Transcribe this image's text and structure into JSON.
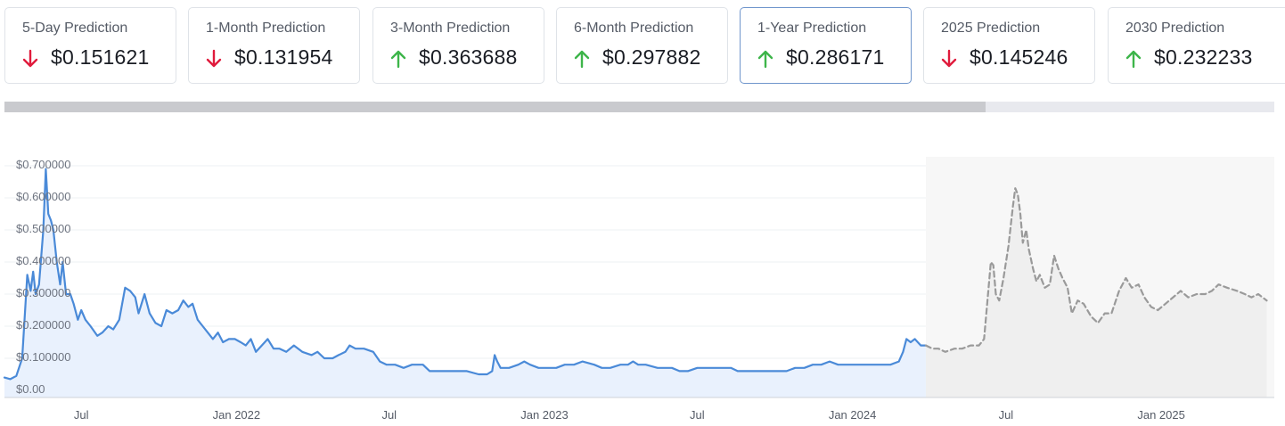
{
  "cards": [
    {
      "label": "5-Day Prediction",
      "value": "$0.151621",
      "direction": "down"
    },
    {
      "label": "1-Month Prediction",
      "value": "$0.131954",
      "direction": "down"
    },
    {
      "label": "3-Month Prediction",
      "value": "$0.363688",
      "direction": "up"
    },
    {
      "label": "6-Month Prediction",
      "value": "$0.297882",
      "direction": "up"
    },
    {
      "label": "1-Year Prediction",
      "value": "$0.286171",
      "direction": "up",
      "selected": true
    },
    {
      "label": "2025 Prediction",
      "value": "$0.145246",
      "direction": "down"
    },
    {
      "label": "2030 Prediction",
      "value": "$0.232233",
      "direction": "up"
    }
  ],
  "colors": {
    "down": "#e01b3c",
    "up": "#3db54a",
    "history_line": "#4a8ad8",
    "history_fill": "#e9f1fd",
    "forecast_line": "#9a9a9a",
    "forecast_fill": "#efefef"
  },
  "chart_data": {
    "type": "line",
    "x_type": "date",
    "grid": true,
    "ylim": [
      0,
      0.7
    ],
    "xlim": [
      "2021-04-01",
      "2025-05-15"
    ],
    "y_ticks": [
      "$0.00",
      "$0.100000",
      "$0.200000",
      "$0.300000",
      "$0.400000",
      "$0.500000",
      "$0.600000",
      "$0.700000"
    ],
    "y_tick_values": [
      0,
      0.1,
      0.2,
      0.3,
      0.4,
      0.5,
      0.6,
      0.7
    ],
    "x_ticks": [
      {
        "label": "Jul",
        "date": "2021-07-01"
      },
      {
        "label": "Jan 2022",
        "date": "2022-01-01"
      },
      {
        "label": "Jul",
        "date": "2022-07-01"
      },
      {
        "label": "Jan 2023",
        "date": "2023-01-01"
      },
      {
        "label": "Jul",
        "date": "2023-07-01"
      },
      {
        "label": "Jan 2024",
        "date": "2024-01-01"
      },
      {
        "label": "Jul",
        "date": "2024-07-01"
      },
      {
        "label": "Jan 2025",
        "date": "2025-01-01"
      }
    ],
    "series": [
      {
        "style": "solid",
        "points": [
          [
            "2021-04-01",
            0.04
          ],
          [
            "2021-04-08",
            0.035
          ],
          [
            "2021-04-15",
            0.045
          ],
          [
            "2021-04-22",
            0.1
          ],
          [
            "2021-04-28",
            0.36
          ],
          [
            "2021-05-02",
            0.31
          ],
          [
            "2021-05-05",
            0.37
          ],
          [
            "2021-05-08",
            0.3
          ],
          [
            "2021-05-12",
            0.33
          ],
          [
            "2021-05-17",
            0.5
          ],
          [
            "2021-05-20",
            0.69
          ],
          [
            "2021-05-23",
            0.55
          ],
          [
            "2021-05-26",
            0.53
          ],
          [
            "2021-05-29",
            0.5
          ],
          [
            "2021-06-02",
            0.4
          ],
          [
            "2021-06-06",
            0.33
          ],
          [
            "2021-06-09",
            0.4
          ],
          [
            "2021-06-13",
            0.3
          ],
          [
            "2021-06-18",
            0.3
          ],
          [
            "2021-06-22",
            0.27
          ],
          [
            "2021-06-27",
            0.22
          ],
          [
            "2021-07-01",
            0.25
          ],
          [
            "2021-07-06",
            0.22
          ],
          [
            "2021-07-12",
            0.2
          ],
          [
            "2021-07-20",
            0.17
          ],
          [
            "2021-07-26",
            0.18
          ],
          [
            "2021-08-02",
            0.2
          ],
          [
            "2021-08-08",
            0.19
          ],
          [
            "2021-08-15",
            0.22
          ],
          [
            "2021-08-22",
            0.32
          ],
          [
            "2021-08-28",
            0.31
          ],
          [
            "2021-09-03",
            0.29
          ],
          [
            "2021-09-07",
            0.24
          ],
          [
            "2021-09-14",
            0.3
          ],
          [
            "2021-09-20",
            0.24
          ],
          [
            "2021-09-27",
            0.21
          ],
          [
            "2021-10-04",
            0.2
          ],
          [
            "2021-10-10",
            0.25
          ],
          [
            "2021-10-17",
            0.24
          ],
          [
            "2021-10-24",
            0.25
          ],
          [
            "2021-10-30",
            0.28
          ],
          [
            "2021-11-05",
            0.26
          ],
          [
            "2021-11-10",
            0.27
          ],
          [
            "2021-11-16",
            0.22
          ],
          [
            "2021-11-22",
            0.2
          ],
          [
            "2021-11-28",
            0.18
          ],
          [
            "2021-12-04",
            0.16
          ],
          [
            "2021-12-10",
            0.18
          ],
          [
            "2021-12-16",
            0.15
          ],
          [
            "2021-12-23",
            0.16
          ],
          [
            "2021-12-30",
            0.16
          ],
          [
            "2022-01-06",
            0.15
          ],
          [
            "2022-01-12",
            0.14
          ],
          [
            "2022-01-18",
            0.16
          ],
          [
            "2022-01-24",
            0.12
          ],
          [
            "2022-01-31",
            0.14
          ],
          [
            "2022-02-07",
            0.16
          ],
          [
            "2022-02-14",
            0.13
          ],
          [
            "2022-02-21",
            0.13
          ],
          [
            "2022-03-01",
            0.12
          ],
          [
            "2022-03-10",
            0.14
          ],
          [
            "2022-03-20",
            0.12
          ],
          [
            "2022-03-31",
            0.11
          ],
          [
            "2022-04-07",
            0.12
          ],
          [
            "2022-04-15",
            0.1
          ],
          [
            "2022-04-25",
            0.1
          ],
          [
            "2022-05-02",
            0.11
          ],
          [
            "2022-05-10",
            0.12
          ],
          [
            "2022-05-15",
            0.14
          ],
          [
            "2022-05-22",
            0.13
          ],
          [
            "2022-06-01",
            0.13
          ],
          [
            "2022-06-12",
            0.12
          ],
          [
            "2022-06-20",
            0.09
          ],
          [
            "2022-06-28",
            0.08
          ],
          [
            "2022-07-08",
            0.08
          ],
          [
            "2022-07-18",
            0.07
          ],
          [
            "2022-07-28",
            0.08
          ],
          [
            "2022-08-10",
            0.08
          ],
          [
            "2022-08-18",
            0.06
          ],
          [
            "2022-08-28",
            0.06
          ],
          [
            "2022-09-08",
            0.06
          ],
          [
            "2022-09-20",
            0.06
          ],
          [
            "2022-10-01",
            0.06
          ],
          [
            "2022-10-15",
            0.05
          ],
          [
            "2022-10-25",
            0.05
          ],
          [
            "2022-10-31",
            0.06
          ],
          [
            "2022-11-03",
            0.11
          ],
          [
            "2022-11-06",
            0.09
          ],
          [
            "2022-11-10",
            0.07
          ],
          [
            "2022-11-20",
            0.07
          ],
          [
            "2022-12-01",
            0.08
          ],
          [
            "2022-12-08",
            0.09
          ],
          [
            "2022-12-15",
            0.08
          ],
          [
            "2022-12-25",
            0.07
          ],
          [
            "2023-01-05",
            0.07
          ],
          [
            "2023-01-15",
            0.07
          ],
          [
            "2023-01-25",
            0.08
          ],
          [
            "2023-02-05",
            0.08
          ],
          [
            "2023-02-15",
            0.09
          ],
          [
            "2023-03-01",
            0.08
          ],
          [
            "2023-03-10",
            0.07
          ],
          [
            "2023-03-20",
            0.07
          ],
          [
            "2023-04-01",
            0.08
          ],
          [
            "2023-04-10",
            0.08
          ],
          [
            "2023-04-16",
            0.09
          ],
          [
            "2023-04-22",
            0.08
          ],
          [
            "2023-05-01",
            0.08
          ],
          [
            "2023-05-15",
            0.07
          ],
          [
            "2023-06-01",
            0.07
          ],
          [
            "2023-06-10",
            0.06
          ],
          [
            "2023-06-20",
            0.06
          ],
          [
            "2023-07-01",
            0.07
          ],
          [
            "2023-07-15",
            0.07
          ],
          [
            "2023-07-25",
            0.07
          ],
          [
            "2023-08-10",
            0.07
          ],
          [
            "2023-08-18",
            0.06
          ],
          [
            "2023-09-01",
            0.06
          ],
          [
            "2023-09-15",
            0.06
          ],
          [
            "2023-10-01",
            0.06
          ],
          [
            "2023-10-15",
            0.06
          ],
          [
            "2023-10-25",
            0.07
          ],
          [
            "2023-11-05",
            0.07
          ],
          [
            "2023-11-15",
            0.08
          ],
          [
            "2023-11-25",
            0.08
          ],
          [
            "2023-12-05",
            0.09
          ],
          [
            "2023-12-15",
            0.08
          ],
          [
            "2023-12-25",
            0.08
          ],
          [
            "2024-01-05",
            0.08
          ],
          [
            "2024-01-15",
            0.08
          ],
          [
            "2024-01-25",
            0.08
          ],
          [
            "2024-02-05",
            0.08
          ],
          [
            "2024-02-15",
            0.08
          ],
          [
            "2024-02-25",
            0.09
          ],
          [
            "2024-03-01",
            0.12
          ],
          [
            "2024-03-05",
            0.16
          ],
          [
            "2024-03-10",
            0.15
          ],
          [
            "2024-03-15",
            0.16
          ],
          [
            "2024-03-22",
            0.14
          ],
          [
            "2024-03-28",
            0.14
          ]
        ]
      },
      {
        "style": "dashed",
        "points": [
          [
            "2024-03-28",
            0.14
          ],
          [
            "2024-04-05",
            0.13
          ],
          [
            "2024-04-12",
            0.13
          ],
          [
            "2024-04-20",
            0.12
          ],
          [
            "2024-05-01",
            0.13
          ],
          [
            "2024-05-10",
            0.13
          ],
          [
            "2024-05-20",
            0.14
          ],
          [
            "2024-05-30",
            0.14
          ],
          [
            "2024-06-05",
            0.16
          ],
          [
            "2024-06-09",
            0.28
          ],
          [
            "2024-06-13",
            0.4
          ],
          [
            "2024-06-16",
            0.39
          ],
          [
            "2024-06-19",
            0.3
          ],
          [
            "2024-06-23",
            0.28
          ],
          [
            "2024-06-28",
            0.35
          ],
          [
            "2024-07-04",
            0.45
          ],
          [
            "2024-07-09",
            0.57
          ],
          [
            "2024-07-12",
            0.63
          ],
          [
            "2024-07-15",
            0.61
          ],
          [
            "2024-07-18",
            0.55
          ],
          [
            "2024-07-21",
            0.46
          ],
          [
            "2024-07-25",
            0.5
          ],
          [
            "2024-07-28",
            0.44
          ],
          [
            "2024-08-02",
            0.38
          ],
          [
            "2024-08-06",
            0.34
          ],
          [
            "2024-08-10",
            0.36
          ],
          [
            "2024-08-16",
            0.32
          ],
          [
            "2024-08-22",
            0.33
          ],
          [
            "2024-08-27",
            0.42
          ],
          [
            "2024-09-01",
            0.38
          ],
          [
            "2024-09-06",
            0.35
          ],
          [
            "2024-09-12",
            0.32
          ],
          [
            "2024-09-17",
            0.24
          ],
          [
            "2024-09-24",
            0.28
          ],
          [
            "2024-10-01",
            0.27
          ],
          [
            "2024-10-10",
            0.23
          ],
          [
            "2024-10-18",
            0.21
          ],
          [
            "2024-10-26",
            0.24
          ],
          [
            "2024-11-03",
            0.24
          ],
          [
            "2024-11-12",
            0.31
          ],
          [
            "2024-11-20",
            0.35
          ],
          [
            "2024-11-27",
            0.32
          ],
          [
            "2024-12-05",
            0.33
          ],
          [
            "2024-12-12",
            0.29
          ],
          [
            "2024-12-20",
            0.26
          ],
          [
            "2024-12-28",
            0.25
          ],
          [
            "2025-01-06",
            0.27
          ],
          [
            "2025-01-15",
            0.29
          ],
          [
            "2025-01-24",
            0.31
          ],
          [
            "2025-02-02",
            0.29
          ],
          [
            "2025-02-12",
            0.3
          ],
          [
            "2025-02-22",
            0.3
          ],
          [
            "2025-03-02",
            0.31
          ],
          [
            "2025-03-10",
            0.33
          ],
          [
            "2025-03-20",
            0.32
          ],
          [
            "2025-04-01",
            0.31
          ],
          [
            "2025-04-10",
            0.3
          ],
          [
            "2025-04-18",
            0.29
          ],
          [
            "2025-04-26",
            0.3
          ],
          [
            "2025-05-06",
            0.28
          ]
        ]
      }
    ]
  }
}
